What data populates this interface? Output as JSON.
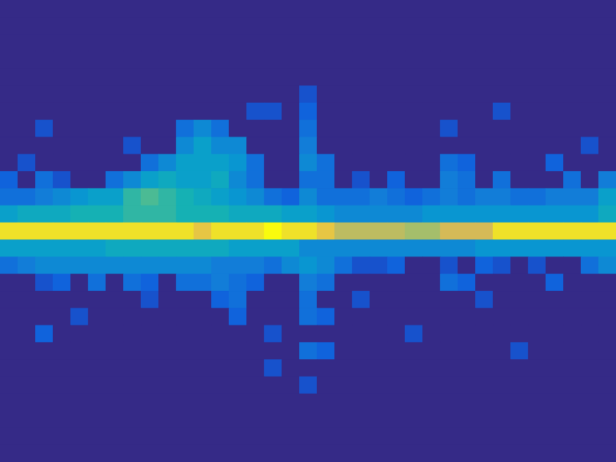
{
  "chart_data": {
    "type": "heatmap",
    "xlim": [
      0,
      35
    ],
    "ylim": [
      0,
      27
    ],
    "zlim": [
      0,
      10
    ],
    "tick_labels": false,
    "cells": [
      [
        0,
        0,
        0,
        0,
        0,
        0,
        0,
        0,
        0,
        0,
        0,
        0,
        0,
        0,
        0,
        0,
        0,
        0,
        0,
        0,
        0,
        0,
        0,
        0,
        0,
        0,
        0,
        0,
        0,
        0,
        0,
        0,
        0,
        0,
        0
      ],
      [
        0,
        0,
        0,
        0,
        0,
        0,
        0,
        0,
        0,
        0,
        0,
        0,
        0,
        0,
        0,
        0,
        0,
        0,
        0,
        0,
        0,
        0,
        0,
        0,
        0,
        0,
        0,
        0,
        0,
        0,
        0,
        0,
        0,
        0,
        0
      ],
      [
        0,
        0,
        0,
        0,
        0,
        0,
        0,
        0,
        0,
        0,
        0,
        0,
        0,
        0,
        0,
        0,
        0,
        0,
        0,
        0,
        0,
        0,
        0,
        0,
        0,
        0,
        0,
        0,
        0,
        0,
        0,
        0,
        0,
        0,
        0
      ],
      [
        0,
        0,
        0,
        0,
        0,
        0,
        0,
        0,
        0,
        0,
        0,
        0,
        0,
        0,
        0,
        0,
        0,
        0,
        0,
        0,
        0,
        0,
        0,
        0,
        0,
        0,
        0,
        0,
        0,
        0,
        0,
        0,
        0,
        0,
        0
      ],
      [
        0,
        0,
        0,
        0,
        0,
        0,
        0,
        0,
        0,
        0,
        0,
        0,
        0,
        0,
        0,
        0,
        0,
        0,
        0,
        0,
        0,
        0,
        0,
        0,
        0,
        0,
        0,
        0,
        0,
        0,
        0,
        0,
        0,
        0,
        0
      ],
      [
        0,
        0,
        0,
        0,
        0,
        0,
        0,
        0,
        0,
        0,
        0,
        0,
        0,
        0,
        0,
        0,
        0,
        1,
        0,
        0,
        0,
        0,
        0,
        0,
        0,
        0,
        0,
        0,
        0,
        0,
        0,
        0,
        0,
        0,
        0
      ],
      [
        0,
        0,
        0,
        0,
        0,
        0,
        0,
        0,
        0,
        0,
        0,
        0,
        0,
        0,
        1,
        1,
        0,
        1.5,
        0,
        0,
        0,
        0,
        0,
        0,
        0,
        0,
        0,
        0,
        1,
        0,
        0,
        0,
        0,
        0,
        0
      ],
      [
        0,
        0,
        1,
        0,
        0,
        0,
        0,
        0,
        0,
        0,
        2,
        3,
        2,
        0,
        0,
        0,
        0,
        2,
        0,
        0,
        0,
        0,
        0,
        0,
        0,
        1,
        0,
        0,
        0,
        0,
        0,
        0,
        0,
        0,
        0
      ],
      [
        0,
        0,
        0,
        0,
        0,
        0,
        0,
        1,
        0,
        0,
        3,
        4,
        3,
        3,
        0,
        0,
        0,
        2.5,
        0,
        0,
        0,
        0,
        0,
        0,
        0,
        0,
        0,
        0,
        0,
        0,
        0,
        0,
        0,
        1,
        0
      ],
      [
        0,
        1,
        0,
        0,
        0,
        0,
        0,
        0,
        2,
        3,
        4,
        4,
        4,
        3.5,
        2,
        0,
        0,
        3,
        2,
        0,
        0,
        0,
        0,
        0,
        0,
        2,
        1.5,
        0,
        0,
        0,
        0,
        1.5,
        0,
        0,
        0
      ],
      [
        1.5,
        0,
        2,
        1,
        0,
        0,
        2,
        3,
        4,
        4.5,
        4,
        4,
        4.5,
        3,
        2,
        0,
        0,
        2,
        2,
        0,
        1,
        0,
        1.5,
        0,
        0,
        2.5,
        2,
        0,
        2,
        0,
        0,
        0,
        2,
        0,
        2.5
      ],
      [
        2,
        2,
        2.5,
        3,
        3.5,
        4,
        4,
        5.5,
        6,
        5.5,
        5,
        4.5,
        4,
        3.5,
        3,
        2,
        1.5,
        3,
        2,
        2,
        2,
        2.5,
        2,
        1.5,
        2,
        2.5,
        2,
        2.5,
        2.5,
        2,
        2,
        2.5,
        2.5,
        2.5,
        4
      ],
      [
        4,
        4.5,
        4.5,
        4.5,
        5,
        5,
        5,
        5.5,
        5.5,
        5.5,
        5,
        5,
        5,
        4.5,
        4.5,
        4.5,
        4,
        4,
        3.5,
        3,
        3,
        3,
        3,
        3,
        3.5,
        3.5,
        3.5,
        3.5,
        3.5,
        3.5,
        3.5,
        3.5,
        3.5,
        3.5,
        4.5
      ],
      [
        9.5,
        9.5,
        9.5,
        9.5,
        9.5,
        9.5,
        9.5,
        9.5,
        9.5,
        9.5,
        9.5,
        9,
        9.5,
        9.5,
        9.5,
        10,
        9.5,
        9.5,
        9,
        8,
        8,
        8,
        8,
        7.5,
        7.5,
        8.5,
        8.5,
        8.5,
        9.5,
        9.5,
        9.5,
        9.5,
        9.5,
        9.5,
        9.5
      ],
      [
        4,
        4,
        4,
        4,
        4,
        4,
        4.5,
        4.5,
        4.5,
        4.5,
        4.5,
        4.5,
        4.5,
        4,
        4,
        4,
        4,
        3,
        3,
        3,
        3,
        3,
        3,
        3,
        3,
        3,
        3,
        3.5,
        3.5,
        3.5,
        3.5,
        3.5,
        3.5,
        3.5,
        3.5
      ],
      [
        2,
        2.5,
        3,
        3,
        3,
        3,
        3,
        3,
        3,
        3,
        3,
        3,
        2.5,
        2.5,
        2.5,
        2,
        3,
        3.5,
        3,
        2,
        1,
        1,
        1.5,
        0,
        0,
        1,
        0,
        1.5,
        1,
        0,
        1,
        0,
        0,
        2,
        3
      ],
      [
        0,
        0,
        1,
        1.5,
        0,
        2,
        0,
        2,
        1.5,
        0,
        2,
        2,
        2.5,
        2,
        1.5,
        0,
        0,
        2.5,
        2,
        0,
        0,
        0,
        0,
        0,
        0,
        2,
        1.5,
        0,
        0,
        0,
        0,
        1.5,
        0,
        0,
        0
      ],
      [
        0,
        0,
        0,
        0,
        0,
        0,
        0,
        0,
        1,
        0,
        0,
        0,
        1.5,
        2,
        0,
        0,
        0,
        2,
        0,
        0,
        1,
        0,
        0,
        0,
        0,
        0,
        0,
        1,
        0,
        0,
        0,
        0,
        0,
        0,
        0
      ],
      [
        0,
        0,
        0,
        0,
        1,
        0,
        0,
        0,
        0,
        0,
        0,
        0,
        0,
        1.5,
        0,
        0,
        0,
        2,
        1.5,
        0,
        0,
        0,
        0,
        0,
        0,
        0,
        0,
        0,
        0,
        0,
        0,
        0,
        0,
        0,
        0
      ],
      [
        0,
        0,
        1.5,
        0,
        0,
        0,
        0,
        0,
        0,
        0,
        0,
        0,
        0,
        0,
        0,
        1,
        0,
        0,
        0,
        0,
        0,
        0,
        0,
        1,
        0,
        0,
        0,
        0,
        0,
        0,
        0,
        0,
        0,
        0,
        0
      ],
      [
        0,
        0,
        0,
        0,
        0,
        0,
        0,
        0,
        0,
        0,
        0,
        0,
        0,
        0,
        0,
        0,
        0,
        2,
        1.5,
        0,
        0,
        0,
        0,
        0,
        0,
        0,
        0,
        0,
        0,
        1,
        0,
        0,
        0,
        0,
        0
      ],
      [
        0,
        0,
        0,
        0,
        0,
        0,
        0,
        0,
        0,
        0,
        0,
        0,
        0,
        0,
        0,
        1,
        0,
        0,
        0,
        0,
        0,
        0,
        0,
        0,
        0,
        0,
        0,
        0,
        0,
        0,
        0,
        0,
        0,
        0,
        0
      ],
      [
        0,
        0,
        0,
        0,
        0,
        0,
        0,
        0,
        0,
        0,
        0,
        0,
        0,
        0,
        0,
        0,
        0,
        1,
        0,
        0,
        0,
        0,
        0,
        0,
        0,
        0,
        0,
        0,
        0,
        0,
        0,
        0,
        0,
        0,
        0
      ],
      [
        0,
        0,
        0,
        0,
        0,
        0,
        0,
        0,
        0,
        0,
        0,
        0,
        0,
        0,
        0,
        0,
        0,
        0,
        0,
        0,
        0,
        0,
        0,
        0,
        0,
        0,
        0,
        0,
        0,
        0,
        0,
        0,
        0,
        0,
        0
      ],
      [
        0,
        0,
        0,
        0,
        0,
        0,
        0,
        0,
        0,
        0,
        0,
        0,
        0,
        0,
        0,
        0,
        0,
        0,
        0,
        0,
        0,
        0,
        0,
        0,
        0,
        0,
        0,
        0,
        0,
        0,
        0,
        0,
        0,
        0,
        0
      ],
      [
        0,
        0,
        0,
        0,
        0,
        0,
        0,
        0,
        0,
        0,
        0,
        0,
        0,
        0,
        0,
        0,
        0,
        0,
        0,
        0,
        0,
        0,
        0,
        0,
        0,
        0,
        0,
        0,
        0,
        0,
        0,
        0,
        0,
        0,
        0
      ],
      [
        0,
        0,
        0,
        0,
        0,
        0,
        0,
        0,
        0,
        0,
        0,
        0,
        0,
        0,
        0,
        0,
        0,
        0,
        0,
        0,
        0,
        0,
        0,
        0,
        0,
        0,
        0,
        0,
        0,
        0,
        0,
        0,
        0,
        0,
        0
      ]
    ]
  }
}
